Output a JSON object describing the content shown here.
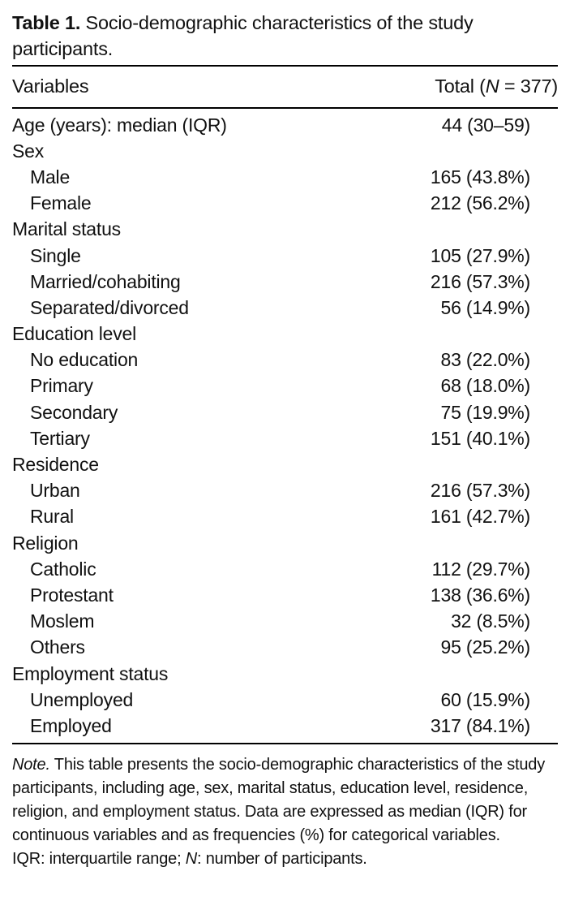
{
  "colors": {
    "text": "#111111",
    "rule": "#000000",
    "background": "#ffffff"
  },
  "title": {
    "label": "Table 1.",
    "text": " Socio-demographic characteristics of the study participants."
  },
  "header": {
    "variables": "Variables",
    "total_pre": "Total (",
    "total_n": "N",
    "total_post": " = 377)"
  },
  "table": {
    "rows": [
      {
        "label": "Age (years): median (IQR)",
        "value": "44 (30–59)",
        "indent": false
      },
      {
        "label": "Sex",
        "value": "",
        "indent": false
      },
      {
        "label": "Male",
        "value": "165 (43.8%)",
        "indent": true
      },
      {
        "label": "Female",
        "value": "212 (56.2%)",
        "indent": true
      },
      {
        "label": "Marital status",
        "value": "",
        "indent": false
      },
      {
        "label": "Single",
        "value": "105 (27.9%)",
        "indent": true
      },
      {
        "label": "Married/cohabiting",
        "value": "216 (57.3%)",
        "indent": true
      },
      {
        "label": "Separated/divorced",
        "value": "56 (14.9%)",
        "indent": true
      },
      {
        "label": "Education level",
        "value": "",
        "indent": false
      },
      {
        "label": "No education",
        "value": "83 (22.0%)",
        "indent": true
      },
      {
        "label": "Primary",
        "value": "68 (18.0%)",
        "indent": true
      },
      {
        "label": "Secondary",
        "value": "75 (19.9%)",
        "indent": true
      },
      {
        "label": "Tertiary",
        "value": "151 (40.1%)",
        "indent": true
      },
      {
        "label": "Residence",
        "value": "",
        "indent": false
      },
      {
        "label": "Urban",
        "value": "216 (57.3%)",
        "indent": true
      },
      {
        "label": "Rural",
        "value": "161 (42.7%)",
        "indent": true
      },
      {
        "label": "Religion",
        "value": "",
        "indent": false
      },
      {
        "label": "Catholic",
        "value": "112 (29.7%)",
        "indent": true
      },
      {
        "label": "Protestant",
        "value": "138 (36.6%)",
        "indent": true
      },
      {
        "label": "Moslem",
        "value": "32 (8.5%)",
        "indent": true
      },
      {
        "label": "Others",
        "value": "95 (25.2%)",
        "indent": true
      },
      {
        "label": "Employment status",
        "value": "",
        "indent": false
      },
      {
        "label": "Unemployed",
        "value": "60 (15.9%)",
        "indent": true
      },
      {
        "label": "Employed",
        "value": "317 (84.1%)",
        "indent": true
      }
    ]
  },
  "note": {
    "label_italic": "Note.",
    "body": " This table presents the socio-demographic characteristics of the study participants, including age, sex, marital status, education level, residence, religion, and employment status. Data are expressed as median (IQR) for continuous variables and as frequencies (%) for categorical variables.",
    "abbr_pre": "IQR: interquartile range; ",
    "abbr_n": "N",
    "abbr_post": ": number of participants."
  }
}
